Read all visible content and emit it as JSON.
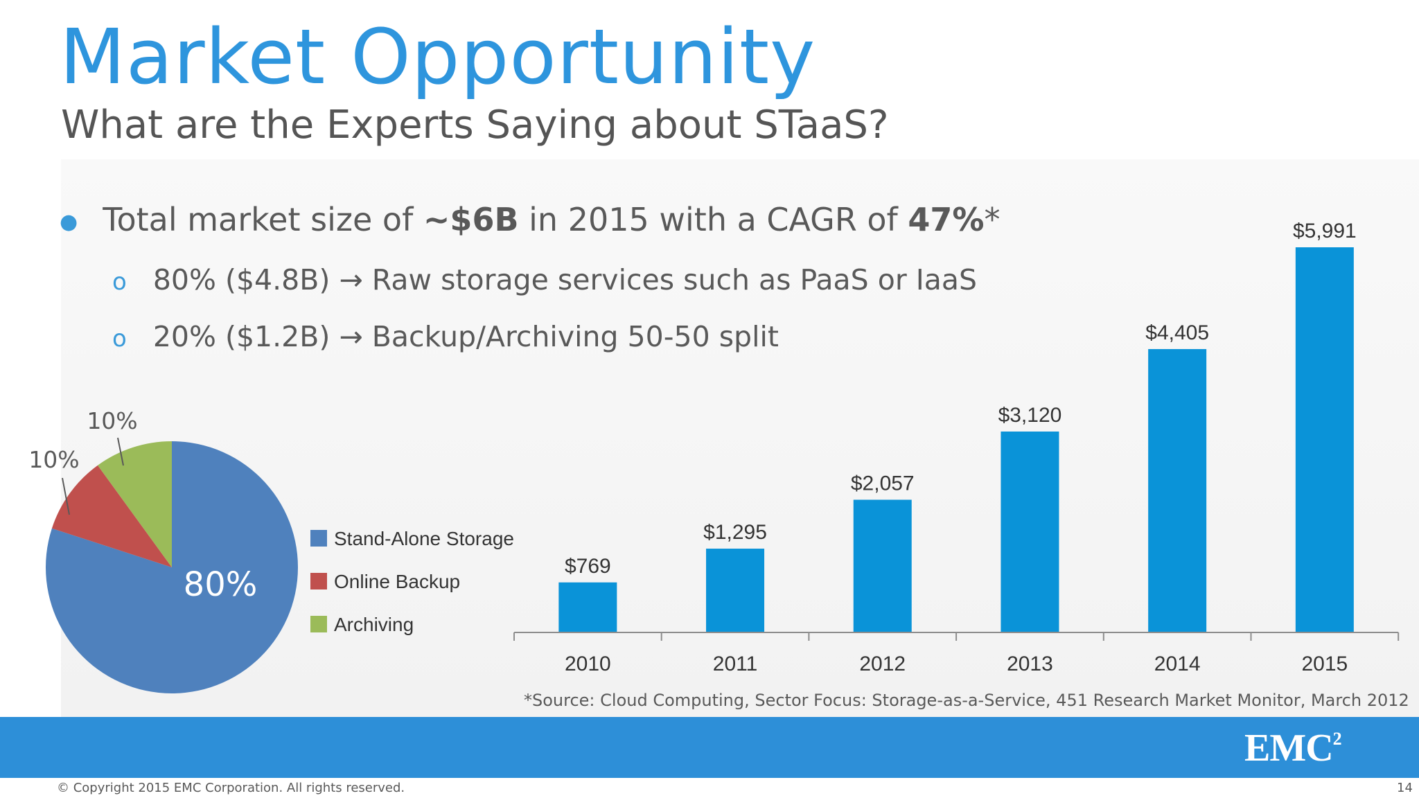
{
  "title": "Market Opportunity",
  "subtitle": "What are the Experts Saying about STaaS?",
  "bullet": {
    "prefix": "Total market size of ",
    "bold1": "~$6B",
    "middle": " in 2015 with a CAGR of ",
    "bold2": "47%",
    "suffix": "*"
  },
  "sub_bullets": [
    "80% ($4.8B) → Raw storage services such as PaaS or IaaS",
    "20% ($1.2B) → Backup/Archiving 50-50 split"
  ],
  "source": "*Source: Cloud Computing, Sector Focus: Storage-as-a-Service, 451 Research Market Monitor, March 2012",
  "copyright": "© Copyright 2015 EMC Corporation. All rights reserved.",
  "page_number": "14",
  "logo": {
    "text": "EMC",
    "superscript": "2"
  },
  "colors": {
    "title": "#2e95dd",
    "bar": "#0a93d8",
    "footer": "#2d8fd8",
    "stand_alone": "#4f81bd",
    "online_backup": "#c0504d",
    "archiving": "#9bbb59"
  },
  "chart_data": [
    {
      "type": "pie",
      "labels": [
        "Stand-Alone Storage",
        "Online Backup",
        "Archiving"
      ],
      "values": [
        80,
        10,
        10
      ],
      "data_labels": [
        "80%",
        "10%",
        "10%"
      ],
      "colors": [
        "#4f81bd",
        "#c0504d",
        "#9bbb59"
      ],
      "legend": "right"
    },
    {
      "type": "bar",
      "categories": [
        "2010",
        "2011",
        "2012",
        "2013",
        "2014",
        "2015"
      ],
      "values": [
        769,
        1295,
        2057,
        3120,
        4405,
        5991
      ],
      "data_labels": [
        "$769",
        "$1,295",
        "$2,057",
        "$3,120",
        "$4,405",
        "$5,991"
      ],
      "color": "#0a93d8",
      "ylim": [
        0,
        5991
      ],
      "grid": false
    }
  ]
}
